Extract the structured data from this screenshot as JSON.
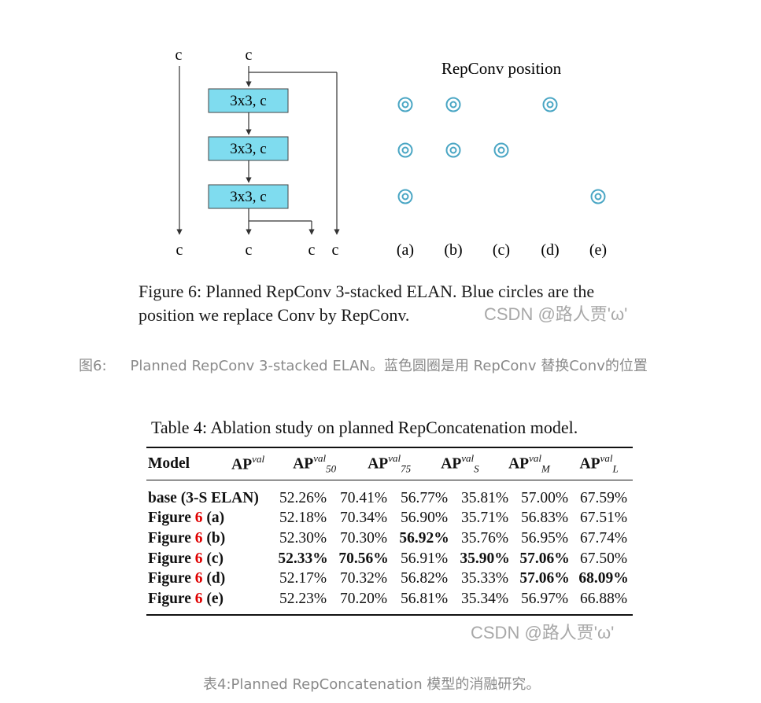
{
  "figure": {
    "c_label": "c",
    "block_label": "3x3, c",
    "rep_title": "RepConv position",
    "variants": [
      "(a)",
      "(b)",
      "(c)",
      "(d)",
      "(e)"
    ],
    "circle_color": "#4aa6c4",
    "block_color": "#7fdcef"
  },
  "figure_caption": {
    "line1": "Figure 6: Planned RepConv 3-stacked ELAN. Blue circles are the",
    "line2": "position we replace Conv by RepConv.",
    "watermark": "CSDN @路人贾'ω'"
  },
  "figure_caption_cn": {
    "label": "图6:",
    "text": "Planned RepConv 3-stacked ELAN。蓝色圆圈是用 RepConv 替换Conv的位置"
  },
  "table": {
    "title": "Table 4: Ablation study on planned RepConcatenation model.",
    "headers": {
      "model": "Model",
      "ap": "AP",
      "val": "val",
      "sub50": "50",
      "sub75": "75",
      "subS": "S",
      "subM": "M",
      "subL": "L"
    },
    "rows": [
      {
        "model": "base (3-S ELAN)",
        "ref": "",
        "variant": "",
        "values": [
          "52.26%",
          "70.41%",
          "56.77%",
          "35.81%",
          "57.00%",
          "67.59%"
        ]
      },
      {
        "model": "Figure ",
        "ref": "6",
        "variant": " (a)",
        "values": [
          "52.18%",
          "70.34%",
          "56.90%",
          "35.71%",
          "56.83%",
          "67.51%"
        ]
      },
      {
        "model": "Figure ",
        "ref": "6",
        "variant": " (b)",
        "values": [
          "52.30%",
          "70.30%",
          "56.92%",
          "35.76%",
          "56.95%",
          "67.74%"
        ]
      },
      {
        "model": "Figure ",
        "ref": "6",
        "variant": " (c)",
        "values": [
          "52.33%",
          "70.56%",
          "56.91%",
          "35.90%",
          "57.06%",
          "67.50%"
        ]
      },
      {
        "model": "Figure ",
        "ref": "6",
        "variant": " (d)",
        "values": [
          "52.17%",
          "70.32%",
          "56.82%",
          "35.33%",
          "57.06%",
          "68.09%"
        ]
      },
      {
        "model": "Figure ",
        "ref": "6",
        "variant": " (e)",
        "values": [
          "52.23%",
          "70.20%",
          "56.81%",
          "35.34%",
          "56.97%",
          "66.88%"
        ]
      }
    ],
    "watermark": "CSDN @路人贾'ω'"
  },
  "table_caption_cn": {
    "text": "表4:Planned RepConcatenation 模型的消融研究。"
  }
}
